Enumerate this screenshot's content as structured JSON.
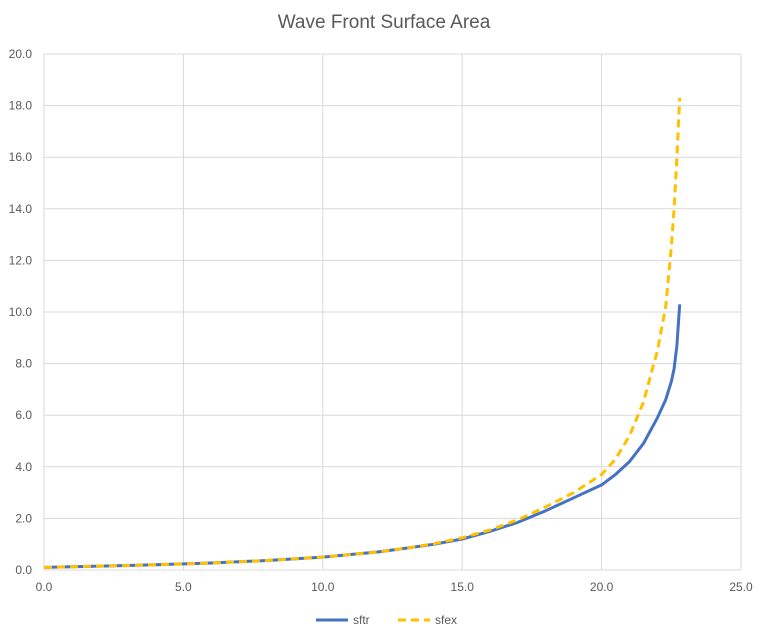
{
  "chart_data": {
    "type": "line",
    "title": "Wave Front Surface Area",
    "xlabel": "",
    "ylabel": "",
    "xlim": [
      0,
      25
    ],
    "ylim": [
      0,
      20
    ],
    "grid": true,
    "legend_position": "bottom",
    "x_ticks": [
      "0.0",
      "5.0",
      "10.0",
      "15.0",
      "20.0",
      "25.0"
    ],
    "y_ticks": [
      "0.0",
      "2.0",
      "4.0",
      "6.0",
      "8.0",
      "10.0",
      "12.0",
      "14.0",
      "16.0",
      "18.0",
      "20.0"
    ],
    "series": [
      {
        "name": "sftr",
        "color": "#4472c4",
        "style": "solid",
        "x": [
          0,
          2,
          4,
          6,
          8,
          10,
          12,
          13,
          14,
          15,
          16,
          17,
          18,
          19,
          20,
          20.5,
          21,
          21.5,
          22,
          22.3,
          22.5,
          22.6,
          22.7,
          22.8
        ],
        "y": [
          0.1,
          0.15,
          0.2,
          0.27,
          0.37,
          0.5,
          0.7,
          0.85,
          1.0,
          1.2,
          1.5,
          1.85,
          2.3,
          2.8,
          3.3,
          3.7,
          4.2,
          4.9,
          5.9,
          6.6,
          7.3,
          7.8,
          8.7,
          10.3
        ]
      },
      {
        "name": "sfex",
        "color": "#ffc000",
        "style": "dashed",
        "x": [
          0,
          2,
          4,
          6,
          8,
          10,
          12,
          13,
          14,
          15,
          16,
          17,
          18,
          19,
          20,
          20.5,
          21,
          21.5,
          22,
          22.3,
          22.5,
          22.6,
          22.7,
          22.8
        ],
        "y": [
          0.1,
          0.15,
          0.2,
          0.27,
          0.37,
          0.5,
          0.7,
          0.85,
          1.02,
          1.25,
          1.55,
          1.95,
          2.45,
          3.0,
          3.7,
          4.3,
          5.2,
          6.5,
          8.5,
          10.2,
          12.5,
          14.0,
          16.0,
          18.3
        ]
      }
    ]
  }
}
